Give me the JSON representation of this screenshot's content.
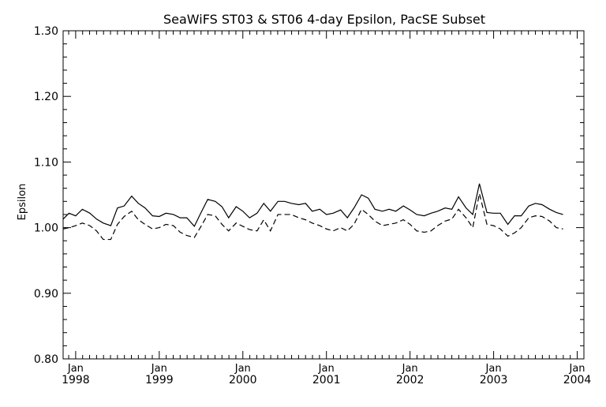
{
  "chart_data": {
    "type": "line",
    "title": "SeaWiFS ST03 & ST06 4-day Epsilon, PacSE Subset",
    "xlabel": "",
    "ylabel": "Epsilon",
    "xlim": [
      1997.85,
      2004.08
    ],
    "ylim": [
      0.8,
      1.3
    ],
    "grid": false,
    "y_ticks": [
      0.8,
      0.9,
      1.0,
      1.1,
      1.2,
      1.3
    ],
    "y_tick_labels": [
      "0.80",
      "0.90",
      "1.00",
      "1.10",
      "1.20",
      "1.30"
    ],
    "x_ticks": [
      1998,
      1999,
      2000,
      2001,
      2002,
      2003,
      2004
    ],
    "x_tick_labels": [
      [
        "Jan",
        "1998"
      ],
      [
        "Jan",
        "1999"
      ],
      [
        "Jan",
        "2000"
      ],
      [
        "Jan",
        "2001"
      ],
      [
        "Jan",
        "2002"
      ],
      [
        "Jan",
        "2003"
      ],
      [
        "Jan",
        "2004"
      ]
    ],
    "series": [
      {
        "style": "solid",
        "points": [
          [
            1997.85,
            1.013
          ],
          [
            1997.92,
            1.022
          ],
          [
            1998.0,
            1.018
          ],
          [
            1998.08,
            1.028
          ],
          [
            1998.17,
            1.022
          ],
          [
            1998.25,
            1.013
          ],
          [
            1998.33,
            1.007
          ],
          [
            1998.42,
            1.003
          ],
          [
            1998.5,
            1.03
          ],
          [
            1998.58,
            1.033
          ],
          [
            1998.67,
            1.048
          ],
          [
            1998.75,
            1.037
          ],
          [
            1998.83,
            1.03
          ],
          [
            1998.92,
            1.018
          ],
          [
            1999.0,
            1.017
          ],
          [
            1999.08,
            1.022
          ],
          [
            1999.17,
            1.02
          ],
          [
            1999.25,
            1.015
          ],
          [
            1999.33,
            1.015
          ],
          [
            1999.42,
            1.002
          ],
          [
            1999.5,
            1.023
          ],
          [
            1999.58,
            1.043
          ],
          [
            1999.67,
            1.04
          ],
          [
            1999.75,
            1.032
          ],
          [
            1999.83,
            1.015
          ],
          [
            1999.92,
            1.032
          ],
          [
            2000.0,
            1.025
          ],
          [
            2000.08,
            1.015
          ],
          [
            2000.17,
            1.022
          ],
          [
            2000.25,
            1.037
          ],
          [
            2000.33,
            1.025
          ],
          [
            2000.42,
            1.04
          ],
          [
            2000.5,
            1.04
          ],
          [
            2000.58,
            1.037
          ],
          [
            2000.67,
            1.035
          ],
          [
            2000.75,
            1.037
          ],
          [
            2000.83,
            1.025
          ],
          [
            2000.92,
            1.028
          ],
          [
            2001.0,
            1.02
          ],
          [
            2001.08,
            1.022
          ],
          [
            2001.17,
            1.027
          ],
          [
            2001.25,
            1.015
          ],
          [
            2001.33,
            1.03
          ],
          [
            2001.42,
            1.05
          ],
          [
            2001.5,
            1.045
          ],
          [
            2001.58,
            1.028
          ],
          [
            2001.67,
            1.025
          ],
          [
            2001.75,
            1.028
          ],
          [
            2001.83,
            1.025
          ],
          [
            2001.92,
            1.033
          ],
          [
            2002.0,
            1.027
          ],
          [
            2002.08,
            1.02
          ],
          [
            2002.17,
            1.018
          ],
          [
            2002.25,
            1.022
          ],
          [
            2002.33,
            1.025
          ],
          [
            2002.42,
            1.03
          ],
          [
            2002.5,
            1.028
          ],
          [
            2002.58,
            1.047
          ],
          [
            2002.67,
            1.03
          ],
          [
            2002.75,
            1.02
          ],
          [
            2002.83,
            1.067
          ],
          [
            2002.92,
            1.023
          ],
          [
            2003.0,
            1.022
          ],
          [
            2003.08,
            1.022
          ],
          [
            2003.17,
            1.005
          ],
          [
            2003.25,
            1.018
          ],
          [
            2003.33,
            1.018
          ],
          [
            2003.42,
            1.033
          ],
          [
            2003.5,
            1.037
          ],
          [
            2003.58,
            1.035
          ],
          [
            2003.67,
            1.028
          ],
          [
            2003.75,
            1.023
          ],
          [
            2003.83,
            1.02
          ]
        ]
      },
      {
        "style": "dashed",
        "points": [
          [
            1997.85,
            0.998
          ],
          [
            1997.92,
            1.0
          ],
          [
            1998.0,
            1.003
          ],
          [
            1998.08,
            1.007
          ],
          [
            1998.17,
            1.003
          ],
          [
            1998.25,
            0.995
          ],
          [
            1998.33,
            0.982
          ],
          [
            1998.42,
            0.982
          ],
          [
            1998.5,
            1.005
          ],
          [
            1998.58,
            1.017
          ],
          [
            1998.67,
            1.025
          ],
          [
            1998.75,
            1.012
          ],
          [
            1998.83,
            1.005
          ],
          [
            1998.92,
            0.998
          ],
          [
            1999.0,
            1.0
          ],
          [
            1999.08,
            1.005
          ],
          [
            1999.17,
            1.003
          ],
          [
            1999.25,
            0.993
          ],
          [
            1999.33,
            0.988
          ],
          [
            1999.42,
            0.985
          ],
          [
            1999.5,
            1.002
          ],
          [
            1999.58,
            1.02
          ],
          [
            1999.67,
            1.018
          ],
          [
            1999.75,
            1.005
          ],
          [
            1999.83,
            0.995
          ],
          [
            1999.92,
            1.007
          ],
          [
            2000.0,
            1.002
          ],
          [
            2000.08,
            0.997
          ],
          [
            2000.17,
            0.995
          ],
          [
            2000.25,
            1.012
          ],
          [
            2000.33,
            0.995
          ],
          [
            2000.42,
            1.02
          ],
          [
            2000.5,
            1.02
          ],
          [
            2000.58,
            1.02
          ],
          [
            2000.67,
            1.015
          ],
          [
            2000.75,
            1.012
          ],
          [
            2000.83,
            1.007
          ],
          [
            2000.92,
            1.003
          ],
          [
            2001.0,
            0.998
          ],
          [
            2001.08,
            0.995
          ],
          [
            2001.17,
            1.0
          ],
          [
            2001.25,
            0.995
          ],
          [
            2001.33,
            1.005
          ],
          [
            2001.42,
            1.028
          ],
          [
            2001.5,
            1.02
          ],
          [
            2001.58,
            1.01
          ],
          [
            2001.67,
            1.003
          ],
          [
            2001.75,
            1.005
          ],
          [
            2001.83,
            1.007
          ],
          [
            2001.92,
            1.012
          ],
          [
            2002.0,
            1.005
          ],
          [
            2002.08,
            0.995
          ],
          [
            2002.17,
            0.993
          ],
          [
            2002.25,
            0.995
          ],
          [
            2002.33,
            1.003
          ],
          [
            2002.42,
            1.01
          ],
          [
            2002.5,
            1.013
          ],
          [
            2002.58,
            1.028
          ],
          [
            2002.67,
            1.015
          ],
          [
            2002.75,
            1.0
          ],
          [
            2002.83,
            1.052
          ],
          [
            2002.92,
            1.005
          ],
          [
            2003.0,
            1.003
          ],
          [
            2003.08,
            0.998
          ],
          [
            2003.17,
            0.987
          ],
          [
            2003.25,
            0.992
          ],
          [
            2003.33,
            1.0
          ],
          [
            2003.42,
            1.015
          ],
          [
            2003.5,
            1.018
          ],
          [
            2003.58,
            1.017
          ],
          [
            2003.67,
            1.01
          ],
          [
            2003.75,
            1.0
          ],
          [
            2003.83,
            0.998
          ]
        ]
      }
    ]
  }
}
